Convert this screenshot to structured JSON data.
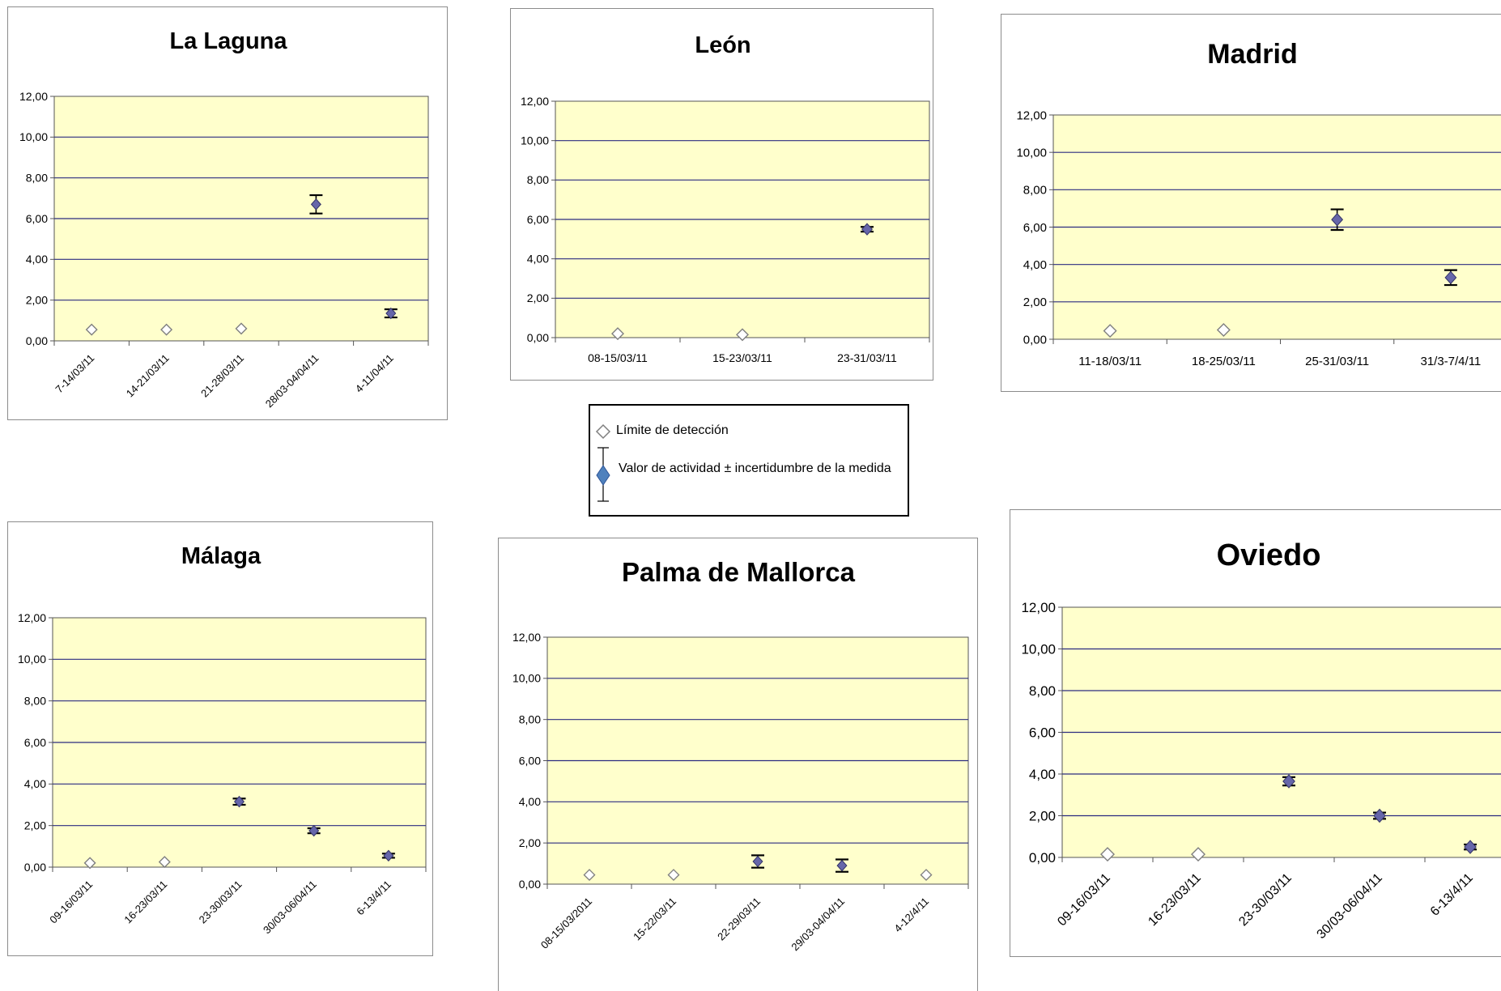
{
  "colors": {
    "plot_bg": "#ffffcc",
    "grid": "#2b2b80",
    "point_fill": "#6666aa",
    "point_stroke": "#333366",
    "error_bar": "#000000",
    "detection_limit_stroke": "#7f7f7f",
    "legend_point_fill": "#4f81bd"
  },
  "legend": {
    "detection_label": "Límite de detección",
    "activity_label": "Valor de actividad ± incertidumbre de la medida"
  },
  "chart_data": [
    {
      "type": "scatter",
      "title": "La Laguna",
      "ylim": [
        0,
        12
      ],
      "yticks": [
        "0,00",
        "2,00",
        "4,00",
        "6,00",
        "8,00",
        "10,00",
        "12,00"
      ],
      "grid": true,
      "categories": [
        "7-14/03/11",
        "14-21/03/11",
        "21-28/03/11",
        "28/03-04/04/11",
        "4-11/04/11"
      ],
      "series": [
        {
          "name": "Límite de detección",
          "values": [
            0.55,
            0.55,
            0.6,
            null,
            null
          ]
        },
        {
          "name": "Valor de actividad ± incertidumbre de la medida",
          "values": [
            null,
            null,
            null,
            6.7,
            1.35
          ],
          "error": [
            null,
            null,
            null,
            0.45,
            0.2
          ]
        }
      ]
    },
    {
      "type": "scatter",
      "title": "León",
      "ylim": [
        0,
        12
      ],
      "yticks": [
        "0,00",
        "2,00",
        "4,00",
        "6,00",
        "8,00",
        "10,00",
        "12,00"
      ],
      "grid": true,
      "categories": [
        "08-15/03/11",
        "15-23/03/11",
        "23-31/03/11"
      ],
      "series": [
        {
          "name": "Límite de detección",
          "values": [
            0.2,
            0.15,
            null
          ]
        },
        {
          "name": "Valor de actividad ± incertidumbre de la medida",
          "values": [
            null,
            null,
            5.5
          ],
          "error": [
            null,
            null,
            0.12
          ]
        }
      ]
    },
    {
      "type": "scatter",
      "title": "Madrid",
      "ylim": [
        0,
        12
      ],
      "yticks": [
        "0,00",
        "2,00",
        "4,00",
        "6,00",
        "8,00",
        "10,00",
        "12,00"
      ],
      "grid": true,
      "categories": [
        "11-18/03/11",
        "18-25/03/11",
        "25-31/03/11",
        "31/3-7/4/11"
      ],
      "series": [
        {
          "name": "Límite de detección",
          "values": [
            0.45,
            0.5,
            null,
            null
          ]
        },
        {
          "name": "Valor de actividad ± incertidumbre de la medida",
          "values": [
            null,
            null,
            6.4,
            3.3
          ],
          "error": [
            null,
            null,
            0.55,
            0.4
          ]
        }
      ]
    },
    {
      "type": "scatter",
      "title": "Málaga",
      "ylim": [
        0,
        12
      ],
      "yticks": [
        "0,00",
        "2,00",
        "4,00",
        "6,00",
        "8,00",
        "10,00",
        "12,00"
      ],
      "grid": true,
      "categories": [
        "09-16/03/11",
        "16-23/03/11",
        "23-30/03/11",
        "30/03-06/04/11",
        "6-13/4/11"
      ],
      "series": [
        {
          "name": "Límite de detección",
          "values": [
            0.2,
            0.25,
            null,
            null,
            null
          ]
        },
        {
          "name": "Valor de actividad ± incertidumbre de la medida",
          "values": [
            null,
            null,
            3.15,
            1.75,
            0.55
          ],
          "error": [
            null,
            null,
            0.15,
            0.12,
            0.1
          ]
        }
      ]
    },
    {
      "type": "scatter",
      "title": "Palma de Mallorca",
      "ylim": [
        0,
        12
      ],
      "yticks": [
        "0,00",
        "2,00",
        "4,00",
        "6,00",
        "8,00",
        "10,00",
        "12,00"
      ],
      "grid": true,
      "categories": [
        "08-15/03/2011",
        "15-22/03/11",
        "22-29/03/11",
        "29/03-04/04/11",
        "4-12/4/11"
      ],
      "series": [
        {
          "name": "Límite de detección",
          "values": [
            0.45,
            0.45,
            null,
            null,
            0.45
          ]
        },
        {
          "name": "Valor de actividad ± incertidumbre de la medida",
          "values": [
            null,
            null,
            1.1,
            0.9,
            null
          ],
          "error": [
            null,
            null,
            0.3,
            0.3,
            null
          ]
        }
      ]
    },
    {
      "type": "scatter",
      "title": "Oviedo",
      "ylim": [
        0,
        12
      ],
      "yticks": [
        "0,00",
        "2,00",
        "4,00",
        "6,00",
        "8,00",
        "10,00",
        "12,00"
      ],
      "grid": true,
      "categories": [
        "09-16/03/11",
        "16-23/03/11",
        "23-30/03/11",
        "30/03-06/04/11",
        "6-13/4/11"
      ],
      "series": [
        {
          "name": "Límite de detección",
          "values": [
            0.15,
            0.15,
            null,
            null,
            null
          ]
        },
        {
          "name": "Valor de actividad ± incertidumbre de la medida",
          "values": [
            null,
            null,
            3.65,
            2.0,
            0.5
          ],
          "error": [
            null,
            null,
            0.2,
            0.15,
            0.12
          ]
        }
      ]
    }
  ]
}
